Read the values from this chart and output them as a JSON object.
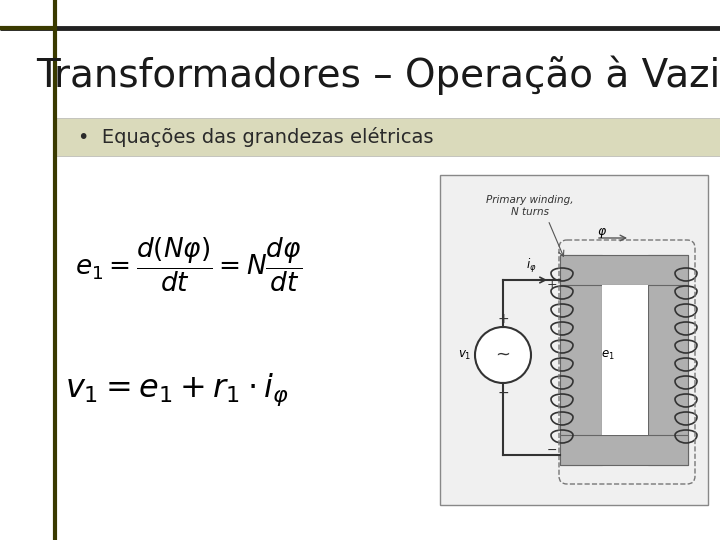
{
  "title": "Transformadores – Operação à Vazio",
  "title_fontsize": 28,
  "title_color": "#1a1a1a",
  "bullet_text": "Equações das grandezas elétricas",
  "bullet_fontsize": 14,
  "bullet_bg_color": "#d4d4b0",
  "eq1_latex": "$e_1 = \\dfrac{d(N\\varphi)}{dt} = N\\dfrac{d\\varphi}{dt}$",
  "eq2_latex": "$v_1 = e_1 + r_1 \\cdot i_{\\varphi}$",
  "eq1_fontsize": 19,
  "eq2_fontsize": 23,
  "bg_color": "#ffffff",
  "line_color": "#3a3a00",
  "fig_width": 7.2,
  "fig_height": 5.4,
  "dpi": 100
}
